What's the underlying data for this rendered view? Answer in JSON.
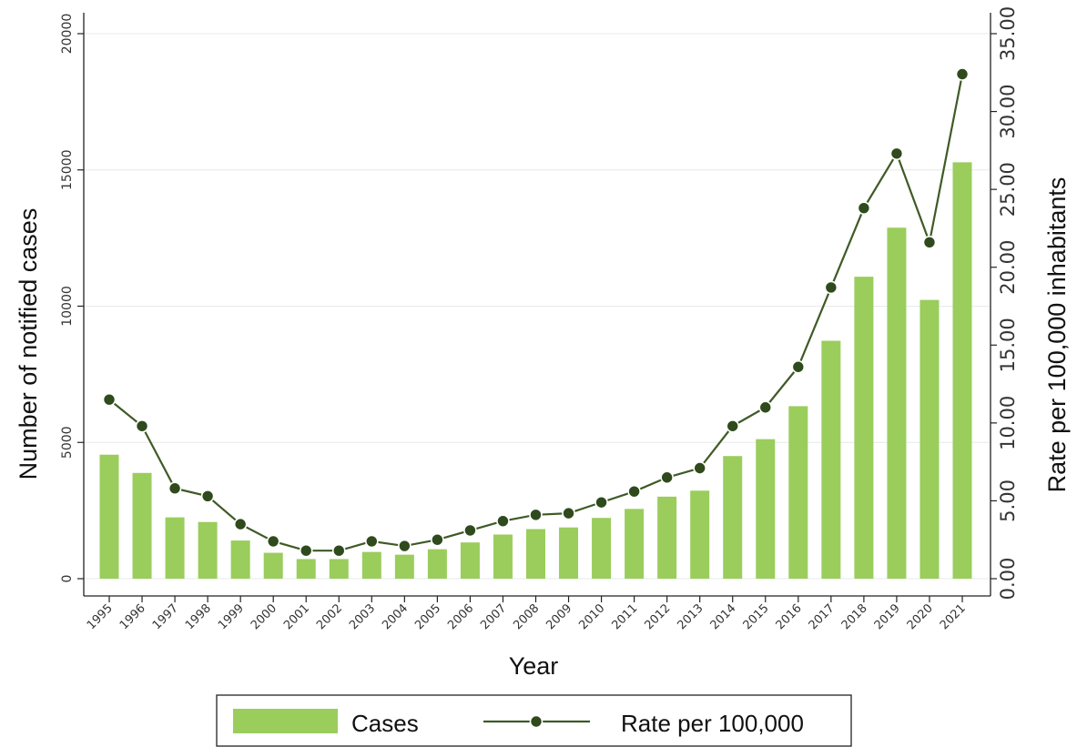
{
  "chart_data": {
    "type": "bar",
    "categories": [
      "1995",
      "1996",
      "1997",
      "1998",
      "1999",
      "2000",
      "2001",
      "2002",
      "2003",
      "2004",
      "2005",
      "2006",
      "2007",
      "2008",
      "2009",
      "2010",
      "2011",
      "2012",
      "2013",
      "2014",
      "2015",
      "2016",
      "2017",
      "2018",
      "2019",
      "2020",
      "2021"
    ],
    "xlabel": "Year",
    "series": [
      {
        "name": "Cases",
        "type": "bar",
        "axis": "left",
        "color": "#9ACD5C",
        "values": [
          4550,
          3880,
          2250,
          2080,
          1400,
          950,
          720,
          720,
          980,
          880,
          1080,
          1330,
          1620,
          1820,
          1880,
          2230,
          2560,
          3010,
          3230,
          4500,
          5120,
          6330,
          8730,
          11080,
          12880,
          10230,
          15280
        ]
      },
      {
        "name": "Rate per 100,000",
        "type": "line",
        "axis": "right",
        "color": "#3F5A26",
        "marker_color": "#2F4A1C",
        "values": [
          11.5,
          9.8,
          5.8,
          5.3,
          3.5,
          2.4,
          1.8,
          1.8,
          2.4,
          2.1,
          2.5,
          3.1,
          3.7,
          4.1,
          4.2,
          4.9,
          5.6,
          6.5,
          7.1,
          9.8,
          11.0,
          13.6,
          18.7,
          23.8,
          27.3,
          21.6,
          32.4
        ]
      }
    ],
    "left_axis": {
      "label": "Number of notified cases",
      "ylim": [
        0,
        20000
      ],
      "ticks": [
        "0",
        "5000",
        "10000",
        "15000",
        "20000"
      ]
    },
    "right_axis": {
      "label": "Rate per 100,000 inhabitants",
      "ylim": [
        0,
        35
      ],
      "ticks": [
        "0.00",
        "5.00",
        "10.00",
        "15.00",
        "20.00",
        "25.00",
        "30.00",
        "35.00"
      ]
    },
    "grid": true,
    "legend": {
      "position": "bottom",
      "items": [
        "Cases",
        "Rate per 100,000"
      ]
    }
  }
}
